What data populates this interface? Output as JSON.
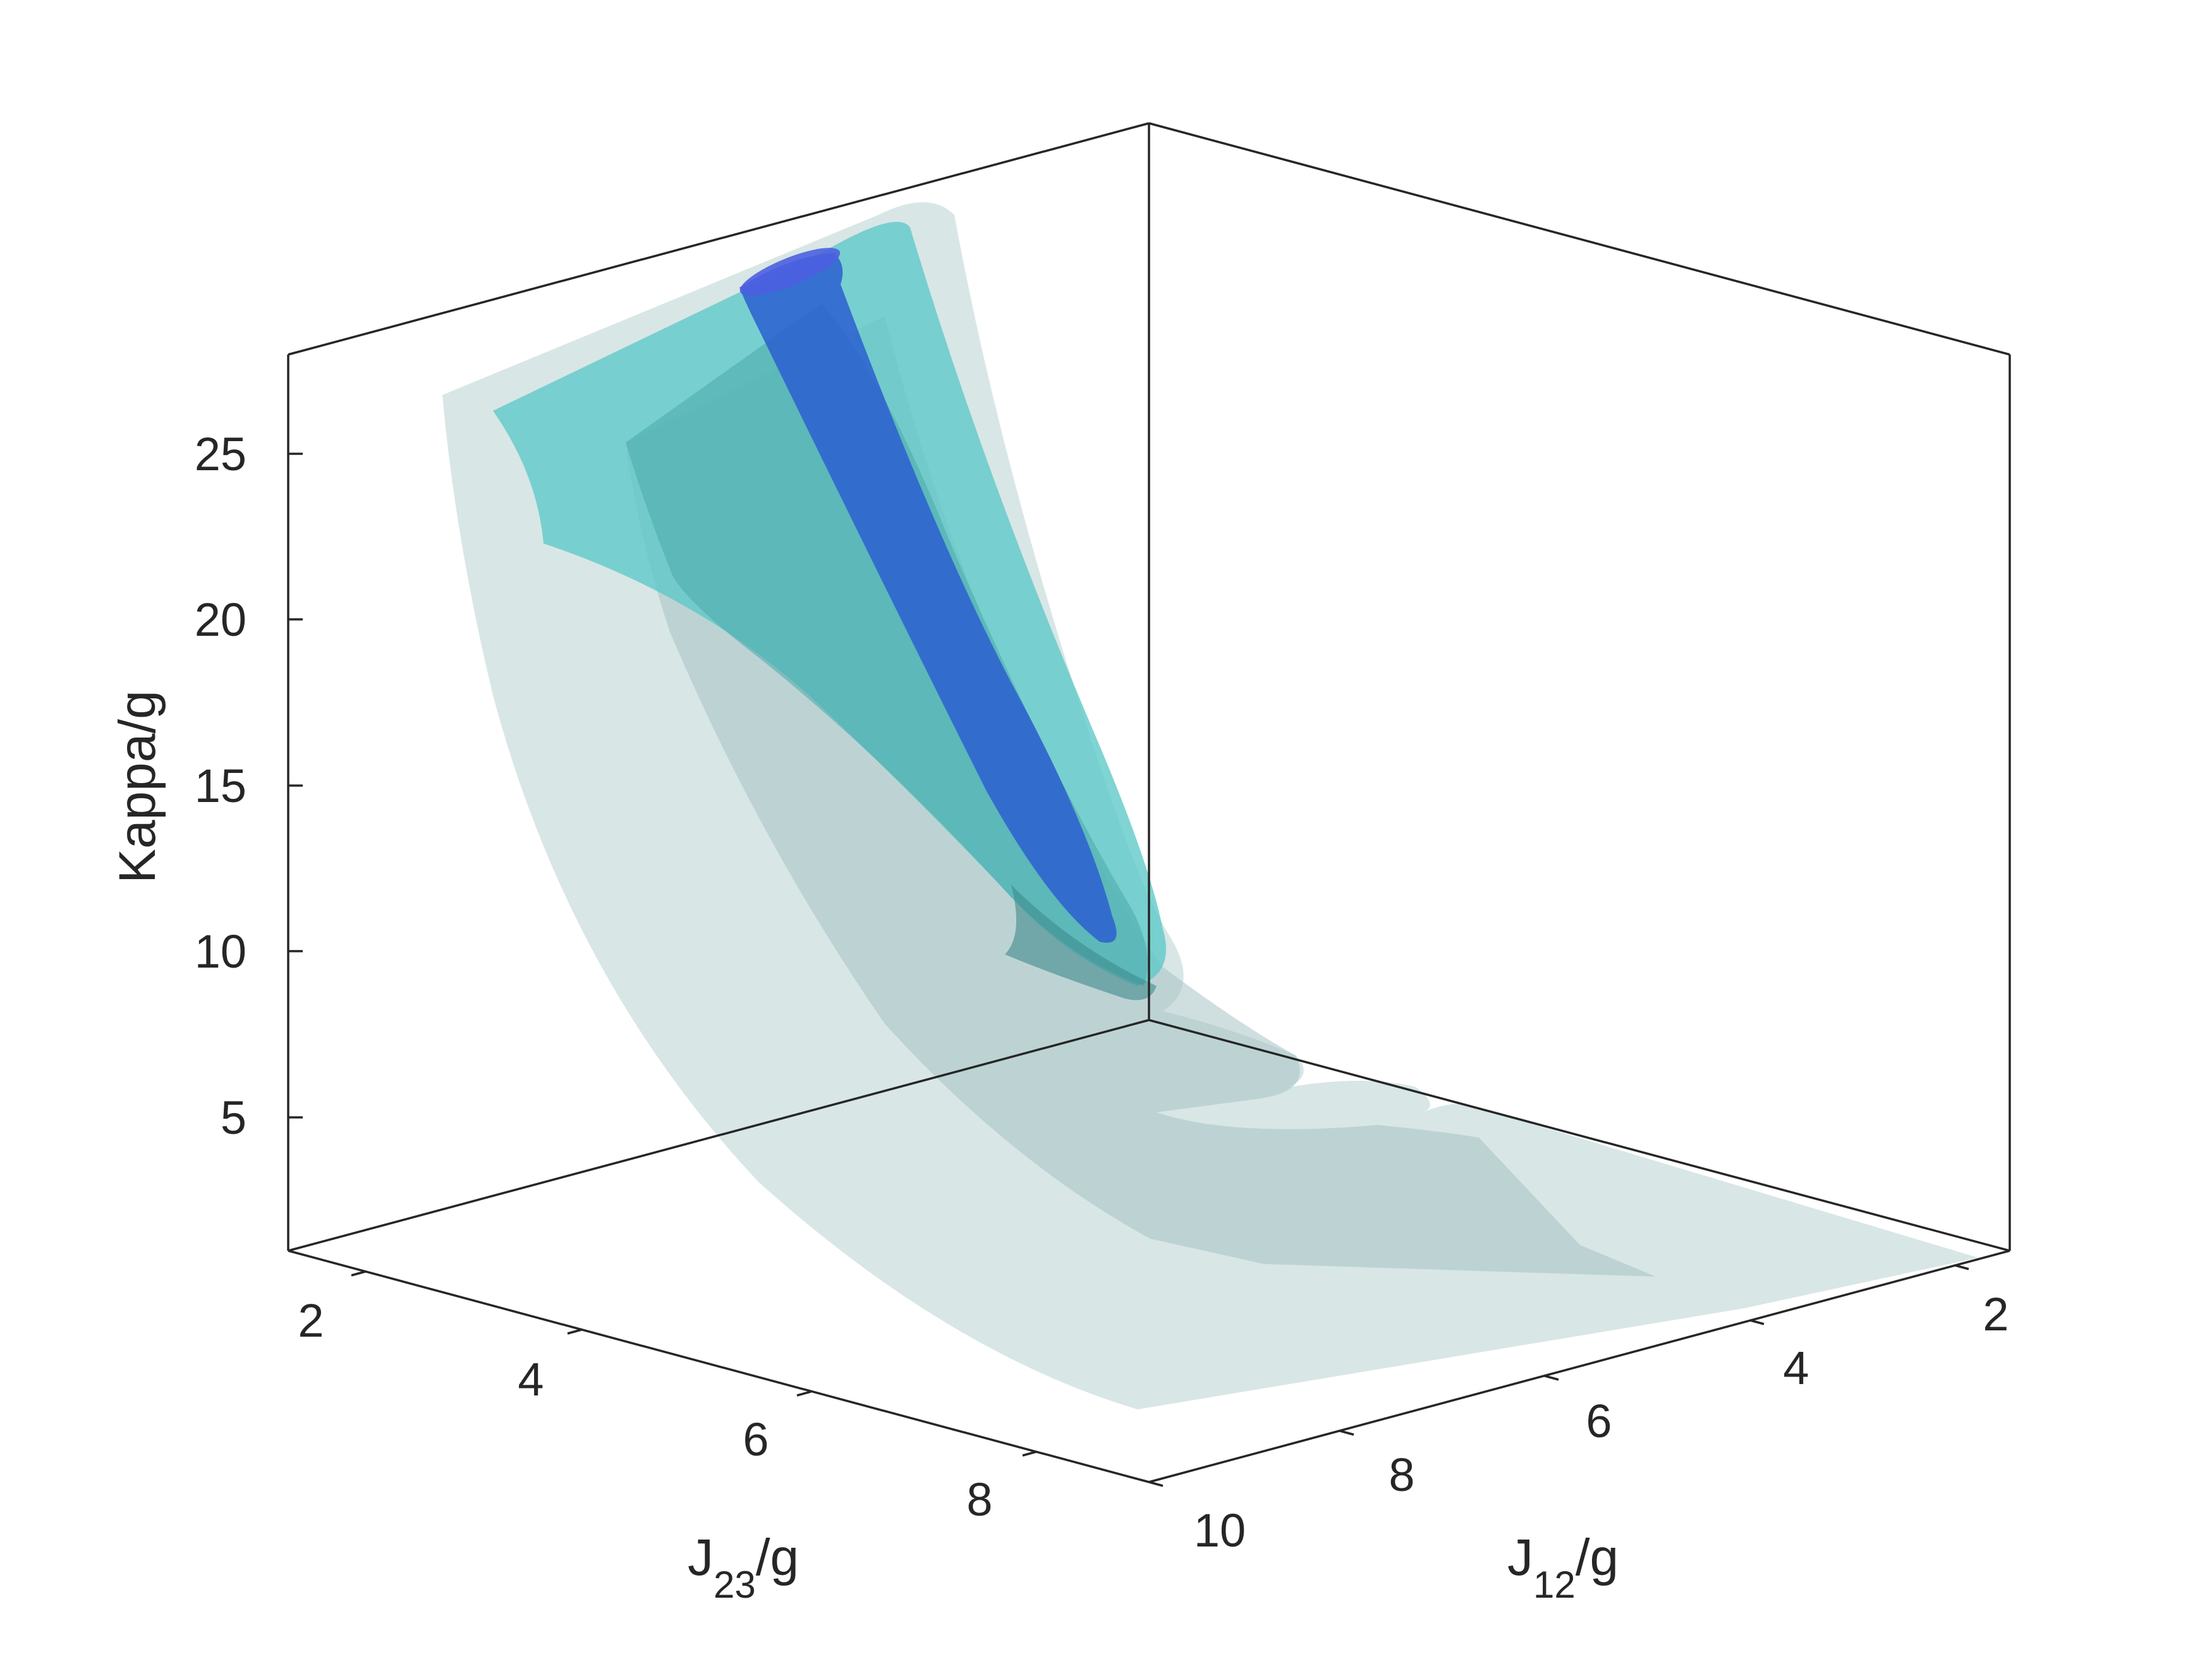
{
  "chart_data": {
    "type": "surface",
    "title": "",
    "axes": {
      "z": {
        "label": "Kappa/g",
        "ticks": [
          "5",
          "10",
          "15",
          "20",
          "25"
        ]
      },
      "j23": {
        "label_main": "J",
        "label_sub": "23",
        "label_rest": "/g",
        "ticks": [
          "2",
          "4",
          "6",
          "8"
        ]
      },
      "j12": {
        "label_main": "J",
        "label_sub": "12",
        "label_rest": "/g",
        "ticks": [
          "2",
          "4",
          "6",
          "8",
          "10"
        ]
      }
    },
    "ranges": {
      "j23": [
        1.5,
        9.5
      ],
      "j12": [
        1.5,
        10.5
      ],
      "kappa": [
        1,
        28
      ]
    },
    "surfaces": [
      {
        "name": "outer",
        "color": "#c9dcdc"
      },
      {
        "name": "middle",
        "color": "#5cc8c8"
      },
      {
        "name": "inner",
        "color": "#2a5fd0"
      }
    ],
    "grid": false
  }
}
